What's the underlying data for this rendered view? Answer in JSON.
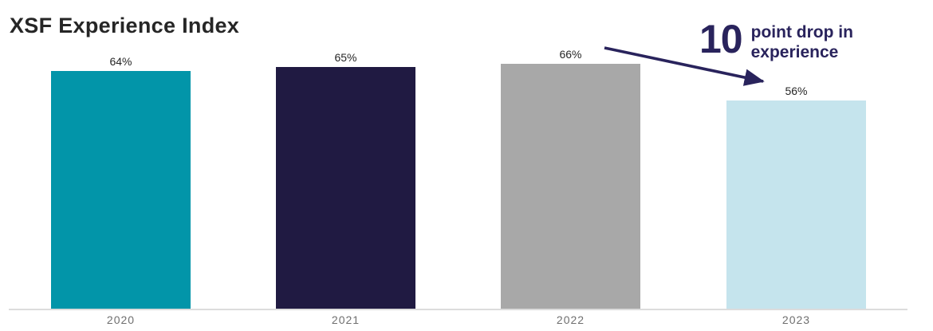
{
  "title": "XSF Experience Index",
  "chart_data": {
    "type": "bar",
    "title": "XSF Experience Index",
    "categories": [
      "2020",
      "2021",
      "2022",
      "2023"
    ],
    "values": [
      64,
      65,
      66,
      56
    ],
    "value_labels": [
      "64%",
      "65%",
      "66%",
      "56%"
    ],
    "bar_colors": [
      "#0295A9",
      "#201A42",
      "#A8A8A8",
      "#C5E4ED"
    ],
    "xlabel": "",
    "ylabel": "",
    "ylim": [
      0,
      70
    ],
    "grid": false,
    "legend": false,
    "annotations": [
      "10 point drop in experience"
    ]
  },
  "annotation": {
    "number": "10",
    "line1": "point drop in",
    "line2": "experience",
    "color": "#29235C"
  },
  "colors": {
    "title": "#262626",
    "axis_line": "#DCDCDC",
    "year_label": "#6F6F6F",
    "value_label": "#262626",
    "background": "#FFFFFF"
  }
}
